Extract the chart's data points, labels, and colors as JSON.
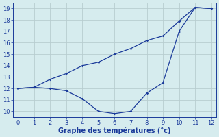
{
  "title": "",
  "xlabel": "Graphe des températures (°c)",
  "ylabel": "",
  "background_color": "#d6ecee",
  "line_color": "#1a3a9a",
  "grid_color": "#b8cdd0",
  "ylim": [
    9.5,
    19.5
  ],
  "xlim": [
    -0.3,
    12.3
  ],
  "yticks": [
    10,
    11,
    12,
    13,
    14,
    15,
    16,
    17,
    18,
    19
  ],
  "xticks": [
    0,
    1,
    2,
    3,
    4,
    5,
    6,
    7,
    8,
    9,
    10,
    11,
    12
  ],
  "line1_x": [
    0,
    1,
    2,
    3,
    4,
    5,
    6,
    7,
    8,
    9,
    10,
    11,
    12
  ],
  "line1_y": [
    12.0,
    12.1,
    12.0,
    11.8,
    11.1,
    10.0,
    9.8,
    10.0,
    11.6,
    12.5,
    17.0,
    19.1,
    19.0
  ],
  "line2_x": [
    0,
    1,
    2,
    3,
    4,
    5,
    6,
    7,
    8,
    9,
    10,
    11,
    12
  ],
  "line2_y": [
    12.0,
    12.1,
    12.8,
    13.3,
    14.0,
    14.3,
    15.0,
    15.5,
    16.2,
    16.6,
    17.9,
    19.1,
    19.0
  ],
  "marker_size": 1.8,
  "line_width": 0.9,
  "tick_fontsize": 6,
  "xlabel_fontsize": 7
}
